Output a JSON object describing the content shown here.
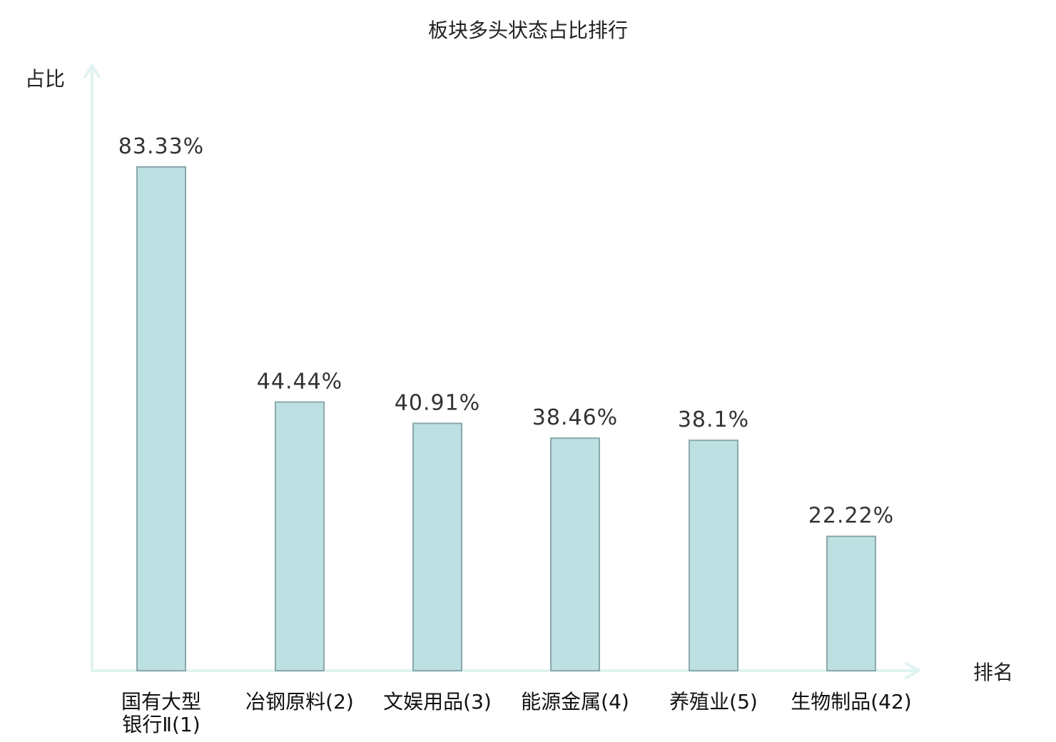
{
  "chart_data": {
    "type": "bar",
    "title": "板块多头状态占比排行",
    "ylabel": "占比",
    "xlabel": "排名",
    "ylim": [
      0,
      100
    ],
    "grid": false,
    "categories": [
      [
        "国有大型",
        "银行Ⅱ(1)"
      ],
      [
        "冶钢原料(2)"
      ],
      [
        "文娱用品(3)"
      ],
      [
        "能源金属(4)"
      ],
      [
        "养殖业(5)"
      ],
      [
        "生物制品(42)"
      ]
    ],
    "values": [
      83.33,
      44.44,
      40.91,
      38.46,
      38.1,
      22.22
    ],
    "value_labels": [
      "83.33%",
      "44.44%",
      "40.91%",
      "38.46%",
      "38.1%",
      "22.22%"
    ],
    "category_colors": [
      "#111111",
      "#111111",
      "#111111",
      "#111111",
      "#111111",
      "#e31a1a"
    ],
    "colors": {
      "bar_fill": "#bde0e2",
      "bar_stroke": "#8aa8aa",
      "axis": "#e0f3f0"
    }
  }
}
